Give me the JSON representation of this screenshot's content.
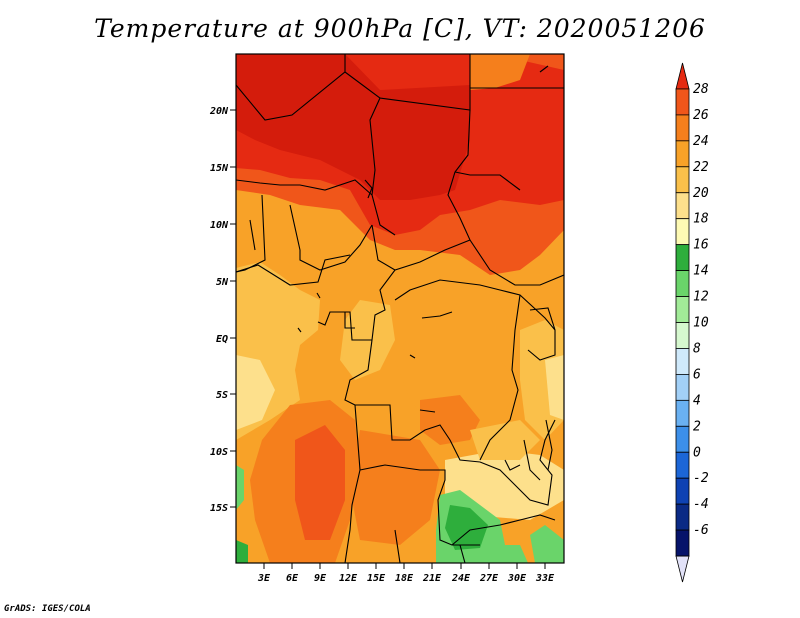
{
  "title": "Temperature at 900hPa [C], VT: 2020051206",
  "credit": "GrADS: IGES/COLA",
  "map": {
    "lat_labels": [
      "20N",
      "15N",
      "10N",
      "5N",
      "EQ",
      "5S",
      "10S",
      "15S"
    ],
    "lon_labels": [
      "3E",
      "6E",
      "9E",
      "12E",
      "15E",
      "18E",
      "21E",
      "24E",
      "27E",
      "30E",
      "33E"
    ]
  },
  "colorbar": {
    "labels": [
      "28",
      "26",
      "24",
      "22",
      "20",
      "18",
      "16",
      "14",
      "12",
      "10",
      "8",
      "6",
      "4",
      "2",
      "0",
      "-2",
      "-4",
      "-6"
    ],
    "colors": [
      "#e52a12",
      "#f0561a",
      "#f57f1c",
      "#f8a228",
      "#fac04a",
      "#fde08c",
      "#fefab4",
      "#2eae3c",
      "#6ad46a",
      "#a2eb98",
      "#d6f8cf",
      "#cfe9fb",
      "#a2d0f7",
      "#6ab1f2",
      "#3c8fe9",
      "#1c66d7",
      "#0e42b3",
      "#0a2a85",
      "#06136a",
      "#e2e2f8"
    ]
  }
}
